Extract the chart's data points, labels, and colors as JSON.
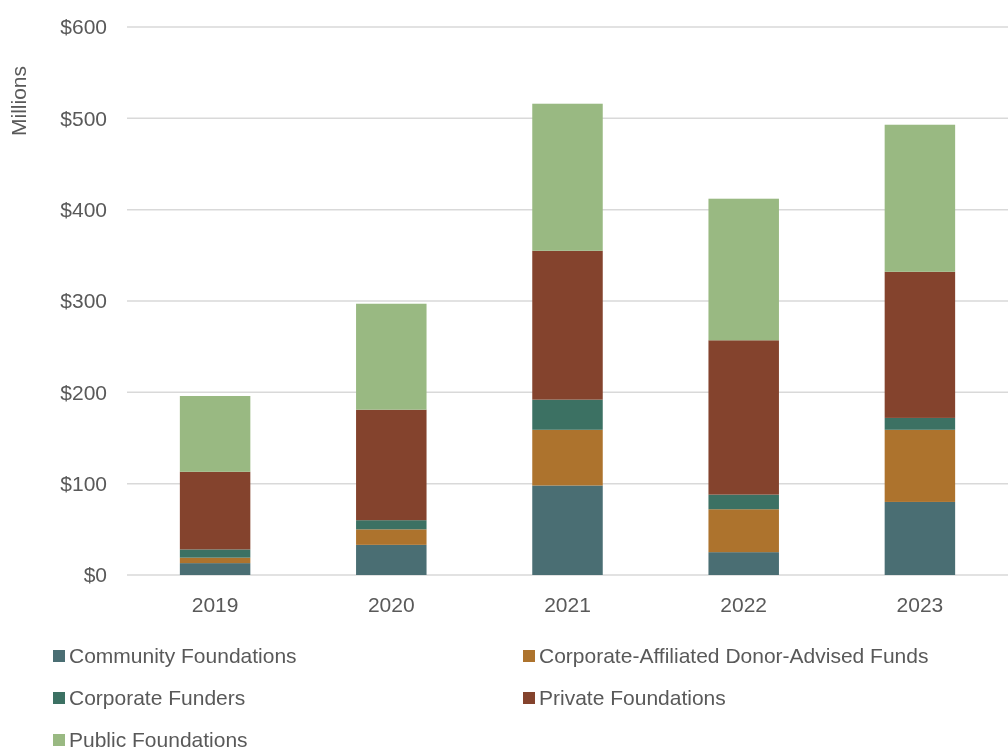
{
  "chart_data": {
    "type": "bar",
    "ylabel": "Millions",
    "categories": [
      "2019",
      "2020",
      "2021",
      "2022",
      "2023"
    ],
    "stacked": true,
    "grid": "y",
    "legend": "bottom",
    "ylim": [
      0,
      600
    ],
    "yticks": [
      {
        "value": 0,
        "label": "$0"
      },
      {
        "value": 100,
        "label": "$100"
      },
      {
        "value": 200,
        "label": "$200"
      },
      {
        "value": 300,
        "label": "$300"
      },
      {
        "value": 400,
        "label": "$400"
      },
      {
        "value": 500,
        "label": "$500"
      },
      {
        "value": 600,
        "label": "$600"
      }
    ],
    "series": [
      {
        "name": "Community Foundations",
        "color": "#4a6e73",
        "values": [
          13,
          33,
          98,
          25,
          80
        ]
      },
      {
        "name": "Corporate-Affiliated Donor-Advised Funds",
        "color": "#ad732d",
        "values": [
          6,
          17,
          61,
          47,
          79
        ]
      },
      {
        "name": "Corporate Funders",
        "color": "#3c7163",
        "values": [
          9,
          10,
          33,
          16,
          13
        ]
      },
      {
        "name": "Private Foundations",
        "color": "#84432d",
        "values": [
          85,
          121,
          163,
          169,
          160
        ]
      },
      {
        "name": "Public Foundations",
        "color": "#99b982",
        "values": [
          83,
          116,
          161,
          155,
          161
        ]
      }
    ]
  }
}
